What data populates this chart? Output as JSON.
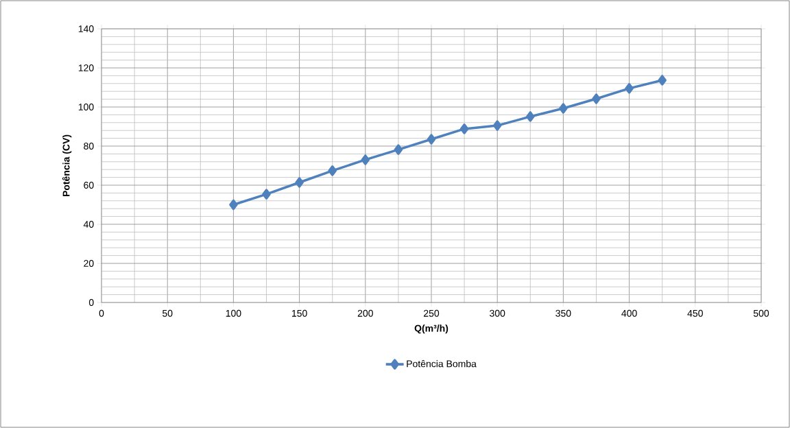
{
  "chart_data": {
    "type": "line",
    "xlabel": "Q(m³/h)",
    "ylabel": "Potência (CV)",
    "x": [
      100,
      125,
      150,
      175,
      200,
      225,
      250,
      275,
      300,
      325,
      350,
      375,
      400,
      425
    ],
    "series": [
      {
        "name": "Potência Bomba",
        "color": "#4f81bd",
        "values": [
          50,
          55.4,
          61.4,
          67.4,
          73,
          78.2,
          83.5,
          88.8,
          90.5,
          95.1,
          99.3,
          104.2,
          109.5,
          113.7
        ]
      }
    ],
    "xlim": [
      0,
      500
    ],
    "ylim": [
      0,
      140
    ],
    "xticks": [
      0,
      50,
      100,
      150,
      200,
      250,
      300,
      350,
      400,
      450,
      500
    ],
    "yticks": [
      0,
      20,
      40,
      60,
      80,
      100,
      120,
      140
    ],
    "grid": true,
    "legend": "bottom",
    "marker": "diamond",
    "line_style": "solid"
  }
}
